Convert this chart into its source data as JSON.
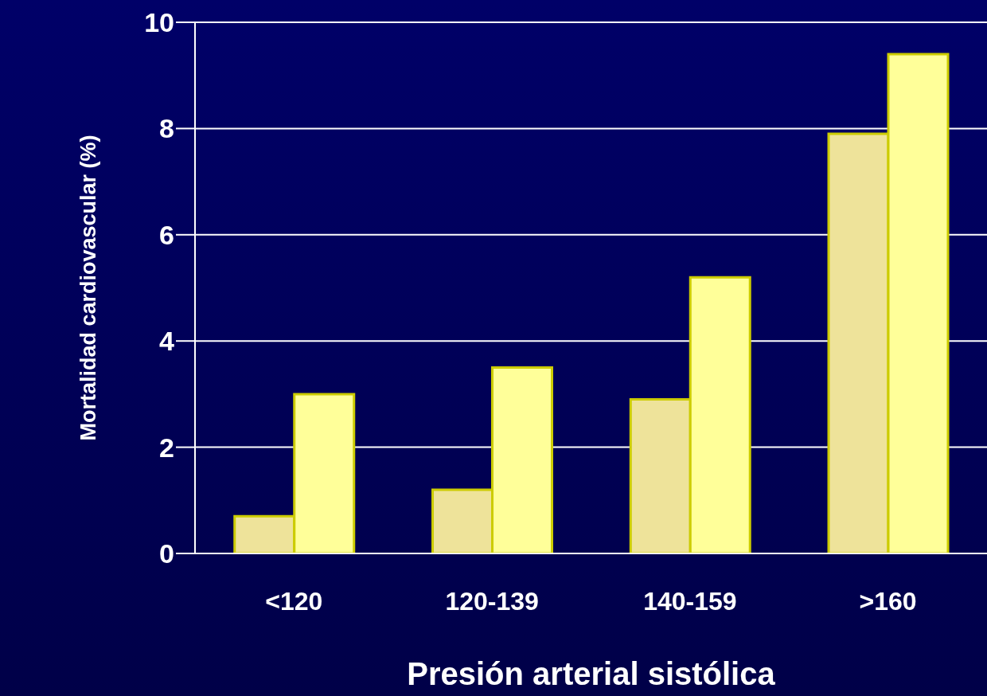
{
  "chart_data": {
    "type": "bar",
    "xlabel": "Presión arterial sistólica",
    "ylabel": "Mortalidad cardiovascular  (%)",
    "categories": [
      "<120",
      "120-139",
      "140-159",
      ">160"
    ],
    "series": [
      {
        "color": "#eee39a",
        "values": [
          0.7,
          1.2,
          2.9,
          7.9
        ]
      },
      {
        "color": "#ffff99",
        "values": [
          3.0,
          3.5,
          5.2,
          9.4
        ]
      }
    ],
    "ylim": [
      0,
      10
    ],
    "yticks": [
      0,
      2,
      4,
      6,
      8,
      10
    ],
    "grid": "y",
    "legend": false
  }
}
